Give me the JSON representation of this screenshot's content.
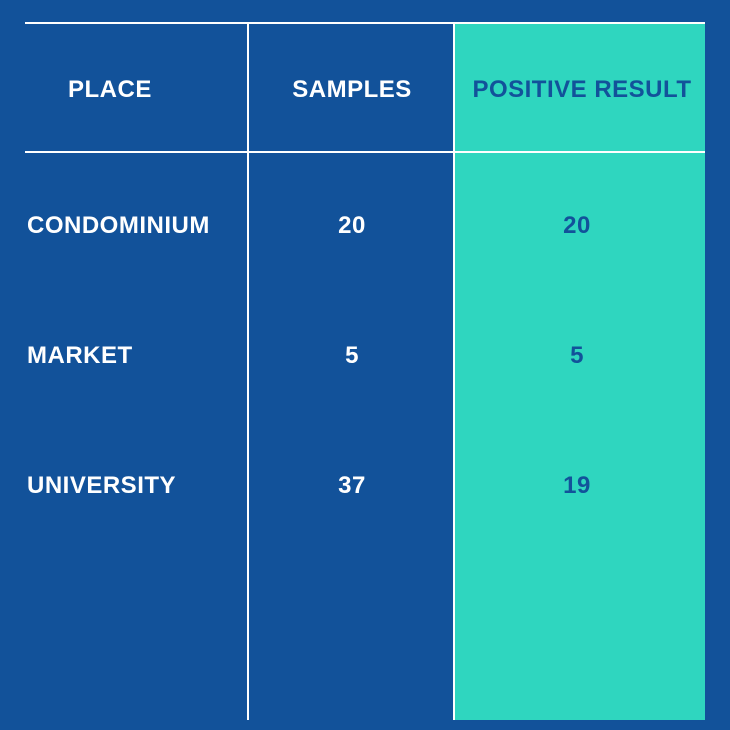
{
  "chart_data": {
    "type": "table",
    "columns": [
      "PLACE",
      "SAMPLES",
      "POSITIVE RESULT"
    ],
    "rows": [
      {
        "place": "CONDOMINIUM",
        "samples": "20",
        "positive": "20"
      },
      {
        "place": "MARKET",
        "samples": "5",
        "positive": "5"
      },
      {
        "place": "UNIVERSITY",
        "samples": "37",
        "positive": "19"
      }
    ]
  },
  "colors": {
    "background": "#12529a",
    "highlight_column": "#2fd6bf",
    "grid_lines": "#ffffff",
    "text_light": "#ffffff",
    "text_on_highlight": "#12529a"
  }
}
